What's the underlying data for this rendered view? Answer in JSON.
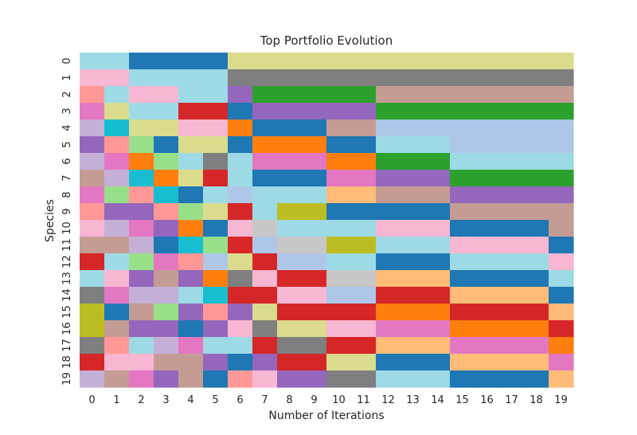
{
  "chart_data": {
    "type": "heatmap",
    "title": "Top Portfolio Evolution",
    "xlabel": "Number of Iterations",
    "ylabel": "Species",
    "x_ticks": [
      "0",
      "1",
      "2",
      "3",
      "4",
      "5",
      "6",
      "7",
      "8",
      "9",
      "10",
      "11",
      "12",
      "13",
      "14",
      "15",
      "16",
      "17",
      "18",
      "19"
    ],
    "y_ticks": [
      "0",
      "1",
      "2",
      "3",
      "4",
      "5",
      "6",
      "7",
      "8",
      "9",
      "10",
      "11",
      "12",
      "13",
      "14",
      "15",
      "16",
      "17",
      "18",
      "19"
    ],
    "colorbar": false,
    "palette": [
      "#1f77b4",
      "#aec7e8",
      "#ff7f0e",
      "#ffbb78",
      "#2ca02c",
      "#98df8a",
      "#d62728",
      "#ff9896",
      "#9467bd",
      "#c5b0d5",
      "#8c564b",
      "#c49c94",
      "#e377c2",
      "#f7b6d2",
      "#7f7f7f",
      "#c7c7c7",
      "#bcbd22",
      "#dbdb8d",
      "#17becf",
      "#9edae5"
    ],
    "values": [
      [
        19,
        19,
        0,
        0,
        0,
        0,
        17,
        17,
        17,
        17,
        17,
        17,
        17,
        17,
        17,
        17,
        17,
        17,
        17,
        17
      ],
      [
        13,
        13,
        19,
        19,
        19,
        19,
        14,
        14,
        14,
        14,
        14,
        14,
        14,
        14,
        14,
        14,
        14,
        14,
        14,
        14
      ],
      [
        7,
        19,
        13,
        13,
        19,
        19,
        8,
        4,
        4,
        4,
        4,
        4,
        11,
        11,
        11,
        11,
        11,
        11,
        11,
        11
      ],
      [
        12,
        17,
        19,
        19,
        6,
        6,
        0,
        8,
        8,
        8,
        8,
        8,
        4,
        4,
        4,
        4,
        4,
        4,
        4,
        4
      ],
      [
        9,
        18,
        17,
        17,
        13,
        13,
        2,
        0,
        0,
        0,
        11,
        11,
        1,
        1,
        1,
        1,
        1,
        1,
        1,
        1
      ],
      [
        8,
        7,
        5,
        0,
        17,
        17,
        0,
        2,
        2,
        2,
        0,
        0,
        19,
        19,
        19,
        1,
        1,
        1,
        1,
        1
      ],
      [
        9,
        12,
        2,
        5,
        19,
        14,
        19,
        12,
        12,
        12,
        2,
        2,
        4,
        4,
        4,
        19,
        19,
        19,
        19,
        19
      ],
      [
        11,
        9,
        18,
        2,
        17,
        6,
        19,
        0,
        0,
        0,
        12,
        12,
        8,
        8,
        8,
        4,
        4,
        4,
        4,
        4
      ],
      [
        12,
        5,
        7,
        18,
        0,
        19,
        1,
        19,
        19,
        19,
        3,
        3,
        11,
        11,
        11,
        8,
        8,
        8,
        8,
        8
      ],
      [
        7,
        8,
        8,
        7,
        5,
        17,
        6,
        19,
        16,
        16,
        0,
        0,
        0,
        0,
        0,
        11,
        11,
        11,
        11,
        11
      ],
      [
        13,
        9,
        12,
        8,
        2,
        0,
        13,
        15,
        19,
        19,
        19,
        19,
        13,
        13,
        13,
        0,
        0,
        0,
        0,
        11
      ],
      [
        11,
        11,
        9,
        0,
        18,
        5,
        6,
        1,
        15,
        15,
        16,
        16,
        19,
        19,
        19,
        13,
        13,
        13,
        13,
        0
      ],
      [
        6,
        19,
        5,
        12,
        7,
        1,
        17,
        6,
        1,
        1,
        19,
        19,
        0,
        0,
        0,
        19,
        19,
        19,
        19,
        13
      ],
      [
        19,
        13,
        8,
        11,
        8,
        2,
        14,
        13,
        6,
        6,
        15,
        15,
        3,
        3,
        3,
        0,
        0,
        0,
        0,
        19
      ],
      [
        14,
        12,
        9,
        9,
        19,
        18,
        6,
        6,
        13,
        13,
        1,
        1,
        6,
        6,
        6,
        3,
        3,
        3,
        3,
        0
      ],
      [
        16,
        0,
        11,
        5,
        8,
        7,
        8,
        17,
        6,
        6,
        6,
        6,
        2,
        2,
        2,
        6,
        6,
        6,
        6,
        3
      ],
      [
        16,
        11,
        8,
        8,
        0,
        8,
        13,
        14,
        17,
        17,
        13,
        13,
        12,
        12,
        12,
        2,
        2,
        2,
        2,
        6
      ],
      [
        14,
        7,
        19,
        9,
        12,
        19,
        19,
        6,
        14,
        14,
        6,
        6,
        3,
        3,
        3,
        12,
        12,
        12,
        12,
        2
      ],
      [
        6,
        13,
        13,
        11,
        11,
        8,
        0,
        8,
        6,
        6,
        17,
        17,
        0,
        0,
        0,
        3,
        3,
        3,
        3,
        12
      ],
      [
        9,
        11,
        12,
        8,
        11,
        0,
        7,
        13,
        8,
        8,
        14,
        14,
        19,
        19,
        19,
        0,
        0,
        0,
        0,
        3
      ]
    ]
  }
}
